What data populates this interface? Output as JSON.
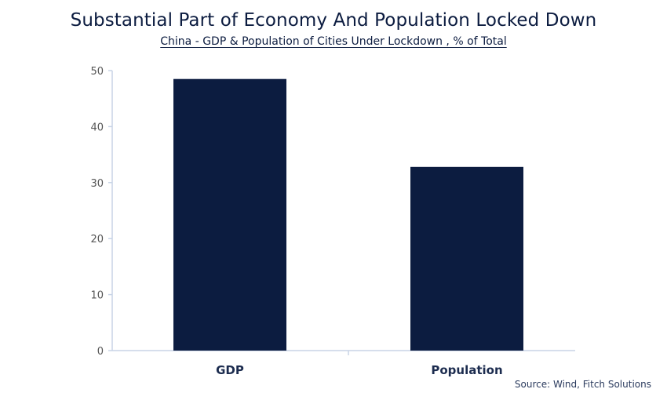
{
  "header": {
    "title": "Substantial Part of Economy And Population Locked Down",
    "subtitle": "China - GDP & Population of Cities Under Lockdown , % of Total"
  },
  "footer": {
    "source": "Source: Wind, Fitch Solutions"
  },
  "colors": {
    "bar": "#0c1c40",
    "axis": "#c8d4e6",
    "text": "#0c1c40"
  },
  "chart_data": {
    "type": "bar",
    "title": "Substantial Part of Economy And Population Locked Down",
    "subtitle": "China - GDP & Population of Cities Under Lockdown , % of Total",
    "categories": [
      "GDP",
      "Population"
    ],
    "values": [
      48.5,
      32.8
    ],
    "xlabel": "",
    "ylabel": "",
    "ylim": [
      0,
      50
    ],
    "yticks": [
      0,
      10,
      20,
      30,
      40,
      50
    ],
    "grid": false,
    "legend": "none"
  }
}
